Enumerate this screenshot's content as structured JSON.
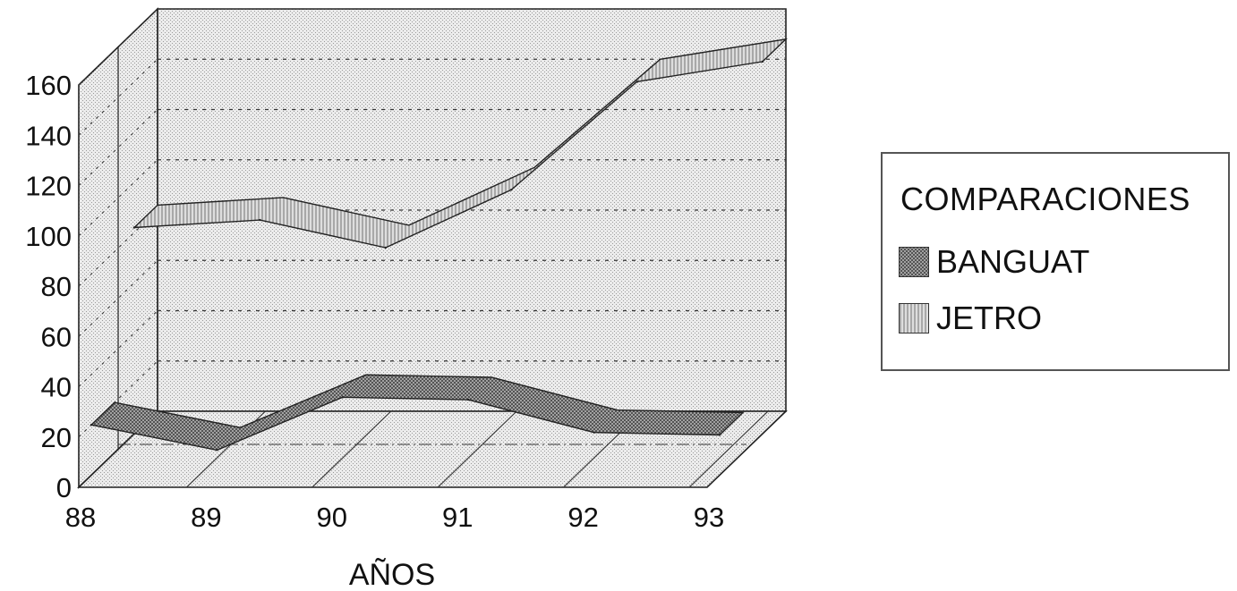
{
  "chart_data": {
    "type": "area",
    "subtype": "3d-ribbon-line",
    "categories": [
      "88",
      "89",
      "90",
      "91",
      "92",
      "93"
    ],
    "yticks": [
      "0",
      "20",
      "40",
      "60",
      "80",
      "100",
      "120",
      "140",
      "160"
    ],
    "ylim": [
      0,
      160
    ],
    "xlabel": "AÑOS",
    "legend_title": "COMPARACIONES",
    "legend_position": "right",
    "grid": true,
    "series": [
      {
        "name": "BANGUAT",
        "values": [
          20,
          10,
          31,
          30,
          17,
          16
        ],
        "color": "#8a8a8a"
      },
      {
        "name": "JETRO",
        "values": [
          82,
          85,
          74,
          97,
          140,
          148
        ],
        "color": "#c4c4c4"
      }
    ]
  }
}
